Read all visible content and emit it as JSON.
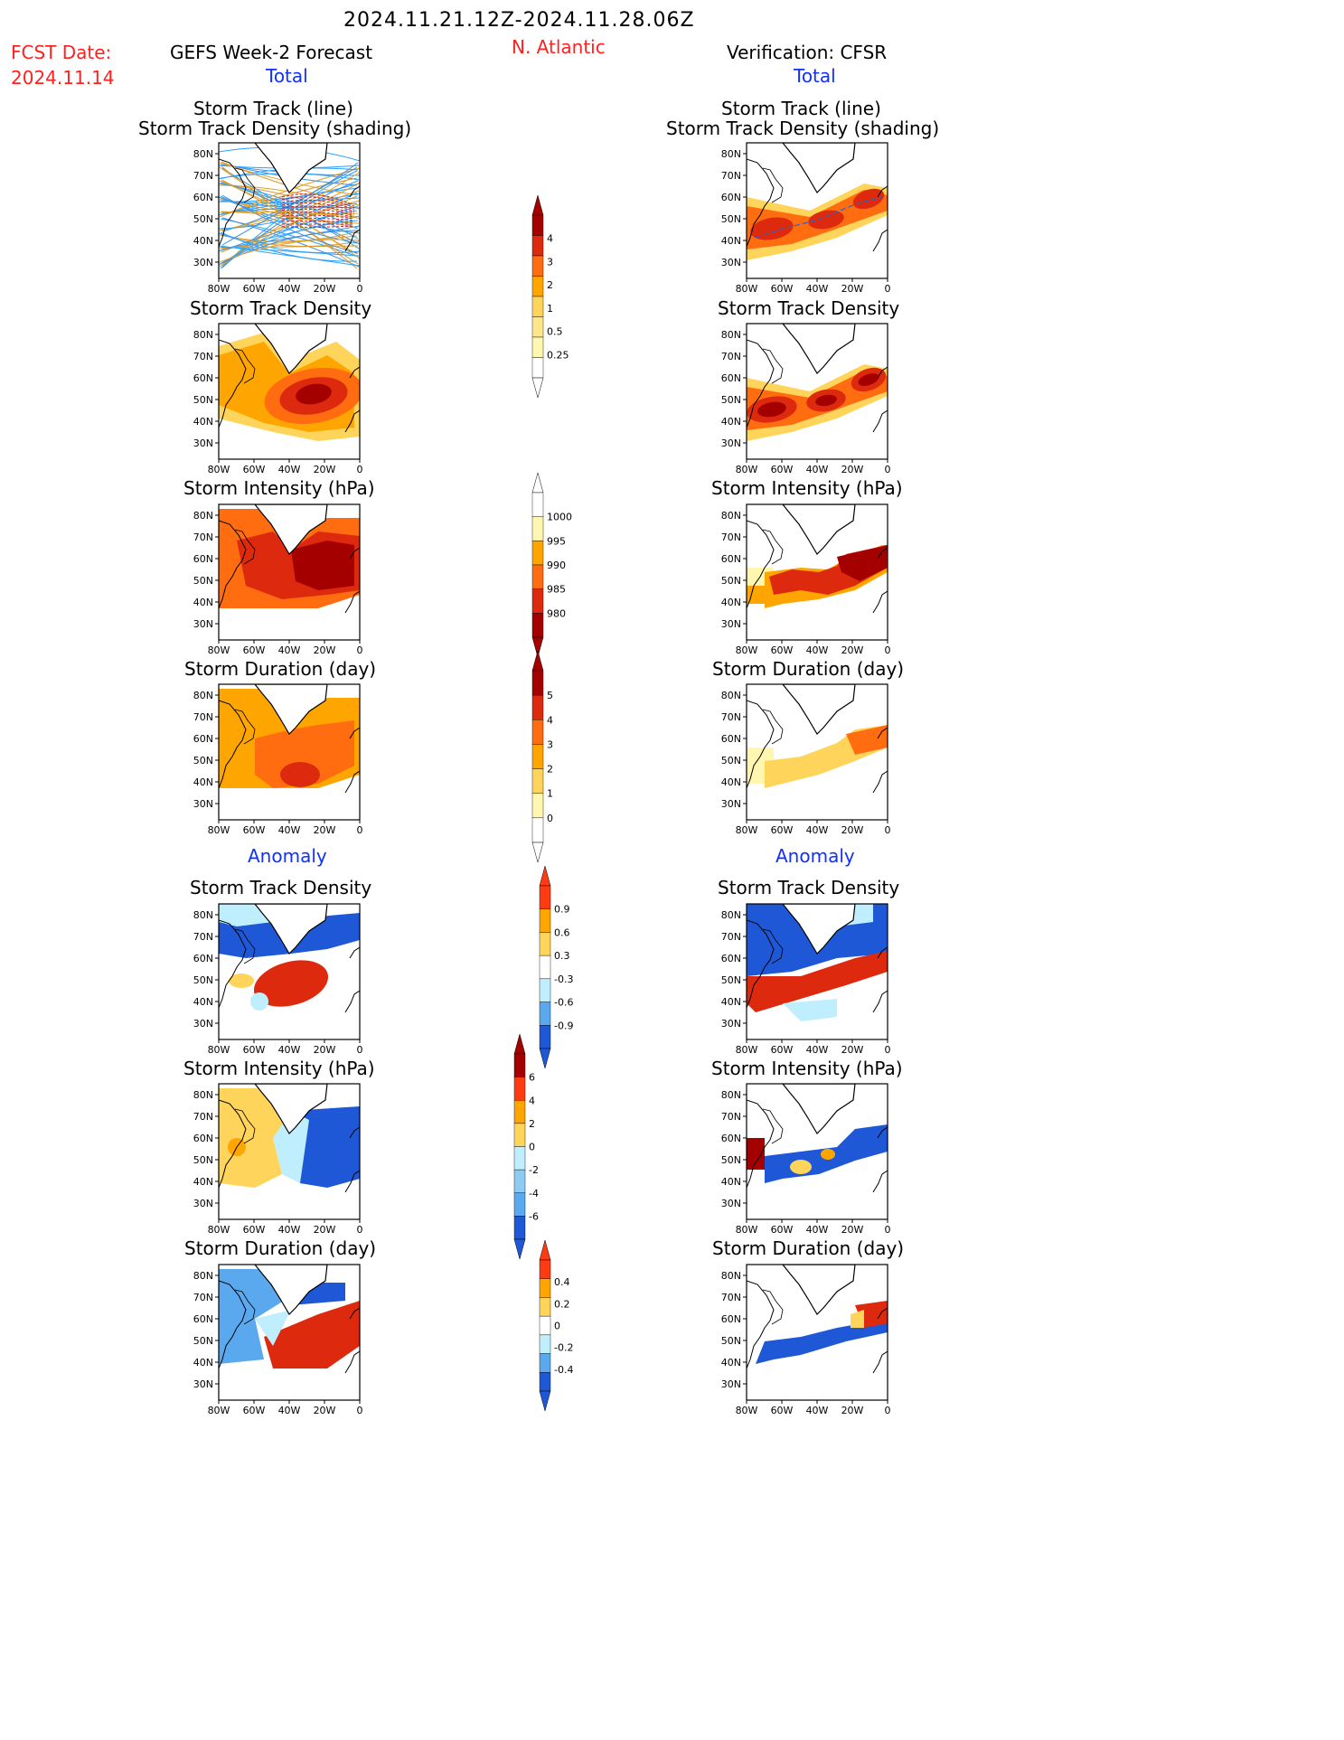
{
  "header": {
    "date_range": "2024.11.21.12Z-2024.11.28.06Z",
    "fcst_label": "FCST Date:",
    "fcst_date": "2024.11.14",
    "left_title": "GEFS Week-2 Forecast",
    "region": "N. Atlantic",
    "right_title": "Verification: CFSR"
  },
  "sections": {
    "total": "Total",
    "anomaly": "Anomaly"
  },
  "panel_titles": {
    "track_line": "Storm Track (line)",
    "track_density_shading": "Storm Track Density (shading)",
    "track_density": "Storm Track Density",
    "intensity": "Storm Intensity (hPa)",
    "duration": "Storm Duration (day)"
  },
  "axes": {
    "lat_ticks": [
      "80N",
      "70N",
      "60N",
      "50N",
      "40N",
      "30N"
    ],
    "lon_ticks": [
      "80W",
      "60W",
      "40W",
      "20W",
      "0"
    ]
  },
  "colorbars": {
    "total_density": [
      "4",
      "3",
      "2",
      "1",
      "0.5",
      "0.25"
    ],
    "total_intensity": [
      "1000",
      "995",
      "990",
      "985",
      "980"
    ],
    "total_duration": [
      "5",
      "4",
      "3",
      "2",
      "1",
      "0"
    ],
    "anom_density": [
      "0.9",
      "0.6",
      "0.3",
      "-0.3",
      "-0.6",
      "-0.9"
    ],
    "anom_intensity": [
      "6",
      "4",
      "2",
      "0",
      "-2",
      "-4",
      "-6"
    ],
    "anom_duration": [
      "0.4",
      "0.2",
      "0",
      "-0.2",
      "-0.4"
    ]
  },
  "colors": {
    "yellow1": "#fff6b0",
    "yellow2": "#ffd45a",
    "orange1": "#ffa500",
    "orange2": "#ff6d10",
    "red1": "#dd2a0e",
    "red2": "#a50000",
    "lblue": "#bfeeff",
    "mblue": "#5aa8ee",
    "dblue": "#1e58d6",
    "track_blue": "#2aa0ff"
  }
}
